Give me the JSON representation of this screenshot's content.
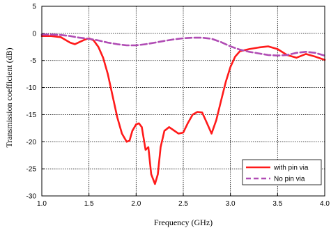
{
  "chart_data": {
    "type": "line",
    "title": "",
    "xlabel": "Frequency (GHz)",
    "ylabel": "Transmission coefficient (dB)",
    "xlim": [
      1.0,
      4.0
    ],
    "ylim": [
      -30,
      5
    ],
    "xticks": [
      1.0,
      1.5,
      2.0,
      2.5,
      3.0,
      3.5,
      4.0
    ],
    "xtick_labels": [
      "1.0",
      "1.5",
      "2.0",
      "2.5",
      "3.0",
      "3.5",
      "4.0"
    ],
    "yticks": [
      5,
      0,
      -5,
      -10,
      -15,
      -20,
      -25,
      -30
    ],
    "ytick_labels": [
      "5",
      "0",
      "-5",
      "-10",
      "-15",
      "-20",
      "-25",
      "-30"
    ],
    "grid": true,
    "legend_position": "bottom-right",
    "series": [
      {
        "name": "with pin via",
        "color": "#ff1a1a",
        "style": "solid",
        "x": [
          1.0,
          1.1,
          1.2,
          1.3,
          1.35,
          1.4,
          1.45,
          1.5,
          1.55,
          1.6,
          1.65,
          1.7,
          1.75,
          1.8,
          1.85,
          1.9,
          1.93,
          1.96,
          2.0,
          2.03,
          2.06,
          2.1,
          2.13,
          2.16,
          2.2,
          2.23,
          2.26,
          2.3,
          2.35,
          2.4,
          2.45,
          2.5,
          2.55,
          2.6,
          2.65,
          2.7,
          2.75,
          2.8,
          2.85,
          2.9,
          2.95,
          3.0,
          3.05,
          3.1,
          3.2,
          3.3,
          3.4,
          3.5,
          3.6,
          3.7,
          3.8,
          3.9,
          4.0
        ],
        "y": [
          -0.5,
          -0.5,
          -0.7,
          -1.7,
          -2.0,
          -1.6,
          -1.2,
          -0.9,
          -1.3,
          -2.5,
          -4.5,
          -7.5,
          -11.5,
          -15.5,
          -18.5,
          -20.0,
          -19.8,
          -18.0,
          -16.8,
          -16.6,
          -17.3,
          -21.5,
          -21.0,
          -26.0,
          -27.8,
          -26.0,
          -21.0,
          -18.0,
          -17.3,
          -17.9,
          -18.5,
          -18.3,
          -16.5,
          -15.0,
          -14.5,
          -14.6,
          -16.5,
          -18.5,
          -16.0,
          -12.5,
          -9.0,
          -6.2,
          -4.3,
          -3.3,
          -2.9,
          -2.6,
          -2.4,
          -2.9,
          -4.0,
          -4.5,
          -3.8,
          -4.3,
          -4.9
        ]
      },
      {
        "name": "No pin via",
        "color": "#b04cb4",
        "style": "dashed",
        "x": [
          1.0,
          1.1,
          1.2,
          1.3,
          1.4,
          1.5,
          1.6,
          1.7,
          1.8,
          1.9,
          2.0,
          2.1,
          2.2,
          2.3,
          2.4,
          2.5,
          2.6,
          2.7,
          2.8,
          2.9,
          3.0,
          3.1,
          3.2,
          3.3,
          3.4,
          3.5,
          3.6,
          3.7,
          3.8,
          3.9,
          4.0
        ],
        "y": [
          -0.2,
          -0.2,
          -0.3,
          -0.5,
          -0.8,
          -1.0,
          -1.3,
          -1.7,
          -2.0,
          -2.2,
          -2.2,
          -2.0,
          -1.7,
          -1.4,
          -1.1,
          -0.9,
          -0.8,
          -0.8,
          -1.0,
          -1.6,
          -2.4,
          -3.0,
          -3.4,
          -3.7,
          -4.0,
          -4.1,
          -4.0,
          -3.6,
          -3.4,
          -3.6,
          -4.1
        ]
      }
    ]
  }
}
